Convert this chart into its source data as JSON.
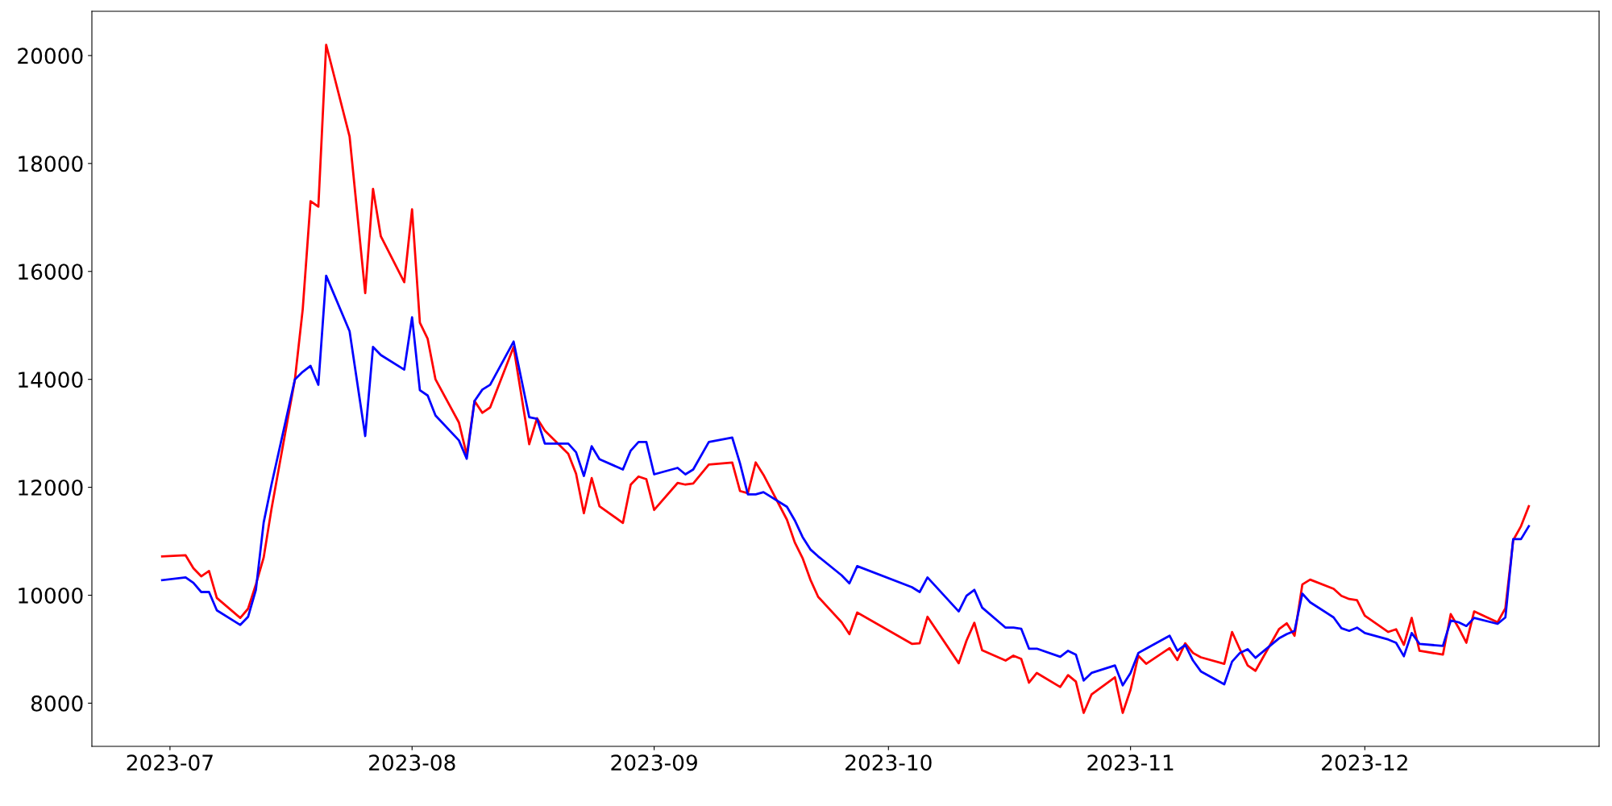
{
  "chart_data": {
    "type": "line",
    "x": [
      "2023-06-30",
      "2023-07-03",
      "2023-07-04",
      "2023-07-05",
      "2023-07-06",
      "2023-07-07",
      "2023-07-10",
      "2023-07-11",
      "2023-07-12",
      "2023-07-13",
      "2023-07-14",
      "2023-07-17",
      "2023-07-18",
      "2023-07-19",
      "2023-07-20",
      "2023-07-21",
      "2023-07-24",
      "2023-07-26",
      "2023-07-27",
      "2023-07-28",
      "2023-07-31",
      "2023-08-01",
      "2023-08-02",
      "2023-08-03",
      "2023-08-04",
      "2023-08-07",
      "2023-08-08",
      "2023-08-09",
      "2023-08-10",
      "2023-08-11",
      "2023-08-14",
      "2023-08-16",
      "2023-08-17",
      "2023-08-18",
      "2023-08-21",
      "2023-08-22",
      "2023-08-23",
      "2023-08-24",
      "2023-08-25",
      "2023-08-28",
      "2023-08-29",
      "2023-08-30",
      "2023-08-31",
      "2023-09-01",
      "2023-09-04",
      "2023-09-05",
      "2023-09-06",
      "2023-09-08",
      "2023-09-11",
      "2023-09-12",
      "2023-09-13",
      "2023-09-14",
      "2023-09-15",
      "2023-09-18",
      "2023-09-19",
      "2023-09-20",
      "2023-09-21",
      "2023-09-22",
      "2023-09-25",
      "2023-09-26",
      "2023-09-27",
      "2023-10-04",
      "2023-10-05",
      "2023-10-06",
      "2023-10-10",
      "2023-10-11",
      "2023-10-12",
      "2023-10-13",
      "2023-10-16",
      "2023-10-17",
      "2023-10-18",
      "2023-10-19",
      "2023-10-20",
      "2023-10-23",
      "2023-10-24",
      "2023-10-25",
      "2023-10-26",
      "2023-10-27",
      "2023-10-30",
      "2023-10-31",
      "2023-11-01",
      "2023-11-02",
      "2023-11-03",
      "2023-11-06",
      "2023-11-07",
      "2023-11-08",
      "2023-11-09",
      "2023-11-10",
      "2023-11-13",
      "2023-11-14",
      "2023-11-15",
      "2023-11-16",
      "2023-11-17",
      "2023-11-20",
      "2023-11-21",
      "2023-11-22",
      "2023-11-23",
      "2023-11-24",
      "2023-11-27",
      "2023-11-28",
      "2023-11-29",
      "2023-11-30",
      "2023-12-01",
      "2023-12-04",
      "2023-12-05",
      "2023-12-06",
      "2023-12-07",
      "2023-12-08",
      "2023-12-11",
      "2023-12-12",
      "2023-12-13",
      "2023-12-14",
      "2023-12-15",
      "2023-12-18",
      "2023-12-19",
      "2023-12-20",
      "2023-12-21",
      "2023-12-22"
    ],
    "series": [
      {
        "color": "#ff0000",
        "values": [
          10720,
          10740,
          10500,
          10350,
          10450,
          9950,
          9580,
          9750,
          10200,
          10700,
          11600,
          14000,
          15300,
          17300,
          17200,
          20200,
          18500,
          15600,
          17530,
          16650,
          15800,
          17150,
          15050,
          14750,
          14000,
          13200,
          12600,
          13600,
          13380,
          13480,
          14600,
          12800,
          13280,
          13050,
          12620,
          12250,
          11520,
          12170,
          11650,
          11340,
          12050,
          12200,
          12150,
          11580,
          12080,
          12050,
          12070,
          12420,
          12460,
          11930,
          11890,
          12460,
          12230,
          11400,
          10980,
          10690,
          10290,
          9970,
          9500,
          9280,
          9680,
          9100,
          9110,
          9600,
          8740,
          9160,
          9490,
          8980,
          8790,
          8880,
          8820,
          8380,
          8560,
          8300,
          8520,
          8400,
          7820,
          8160,
          8480,
          7820,
          8250,
          8880,
          8730,
          9020,
          8800,
          9110,
          8930,
          8850,
          8730,
          9320,
          9000,
          8700,
          8600,
          9370,
          9480,
          9250,
          10200,
          10290,
          10120,
          9990,
          9930,
          9910,
          9620,
          9320,
          9370,
          9080,
          9580,
          8970,
          8900,
          9650,
          9400,
          9120,
          9700,
          9500,
          9760,
          11020,
          11280,
          11650
        ]
      },
      {
        "color": "#0000ff",
        "values": [
          10280,
          10330,
          10230,
          10060,
          10060,
          9720,
          9450,
          9600,
          10100,
          11350,
          12050,
          14000,
          14140,
          14250,
          13900,
          15920,
          14890,
          12950,
          14600,
          14450,
          14180,
          15150,
          13800,
          13700,
          13330,
          12870,
          12530,
          13600,
          13810,
          13900,
          14700,
          13300,
          13270,
          12810,
          12810,
          12650,
          12210,
          12760,
          12520,
          12330,
          12680,
          12840,
          12840,
          12240,
          12360,
          12240,
          12330,
          12840,
          12920,
          12440,
          11870,
          11870,
          11910,
          11640,
          11390,
          11080,
          10850,
          10720,
          10370,
          10220,
          10540,
          10150,
          10060,
          10330,
          9700,
          9990,
          10100,
          9770,
          9400,
          9400,
          9380,
          9010,
          9010,
          8860,
          8970,
          8900,
          8420,
          8560,
          8700,
          8330,
          8560,
          8930,
          9010,
          9250,
          8970,
          9080,
          8790,
          8590,
          8350,
          8770,
          8930,
          9000,
          8840,
          9200,
          9280,
          9340,
          10030,
          9870,
          9590,
          9390,
          9340,
          9400,
          9300,
          9180,
          9120,
          8870,
          9300,
          9100,
          9060,
          9530,
          9500,
          9430,
          9580,
          9470,
          9590,
          11040,
          11040,
          11280
        ]
      }
    ],
    "xlim": [
      "2023-06-21",
      "2023-12-31"
    ],
    "xticks": [
      "2023-07",
      "2023-08",
      "2023-09",
      "2023-10",
      "2023-11",
      "2023-12"
    ],
    "ylim": [
      7200,
      20820
    ],
    "yticks": [
      8000,
      10000,
      12000,
      14000,
      16000,
      18000,
      20000
    ],
    "grid": false,
    "legend": false,
    "marker": "none",
    "line_style": "solid"
  }
}
